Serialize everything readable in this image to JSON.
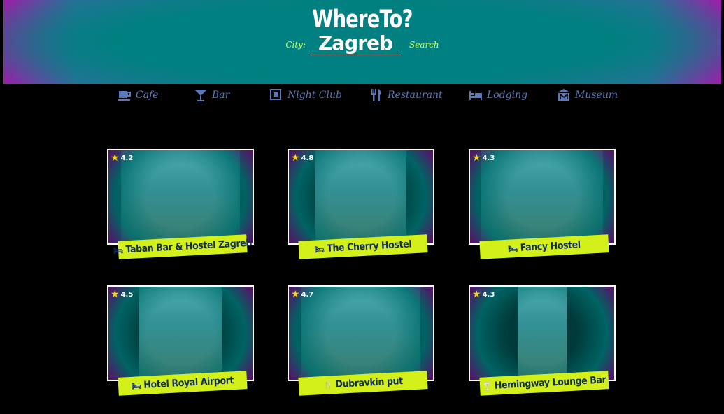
{
  "header": {
    "title": "WhereTo?",
    "city_label": "City:",
    "city_value": "Zagreb",
    "search_label": "Search"
  },
  "nav": {
    "items": [
      {
        "label": "Cafe",
        "icon": "cafe-icon"
      },
      {
        "label": "Bar",
        "icon": "cocktail-icon"
      },
      {
        "label": "Night Club",
        "icon": "night-club-icon"
      },
      {
        "label": "Restaurant",
        "icon": "utensils-icon"
      },
      {
        "label": "Lodging",
        "icon": "bed-icon"
      },
      {
        "label": "Museum",
        "icon": "museum-icon"
      }
    ]
  },
  "places": [
    {
      "name": "Taban Bar & Hostel Zagreb",
      "rating": "4.2",
      "type_icon": "bed-icon"
    },
    {
      "name": "The Cherry Hostel",
      "rating": "4.8",
      "type_icon": "bed-icon"
    },
    {
      "name": "Fancy Hostel",
      "rating": "4.3",
      "type_icon": "bed-icon"
    },
    {
      "name": "Hotel Royal Airport",
      "rating": "4.5",
      "type_icon": "bed-icon"
    },
    {
      "name": "Dubravkin put",
      "rating": "4.7",
      "type_icon": "utensils-icon"
    },
    {
      "name": "Hemingway Lounge Bar",
      "rating": "4.3",
      "type_icon": "cocktail-icon"
    }
  ],
  "colors": {
    "accent": "#d3f01a",
    "header_teal": "#0b7f80",
    "header_purple": "#9a1fa8",
    "nav_text": "#5c78b8"
  }
}
